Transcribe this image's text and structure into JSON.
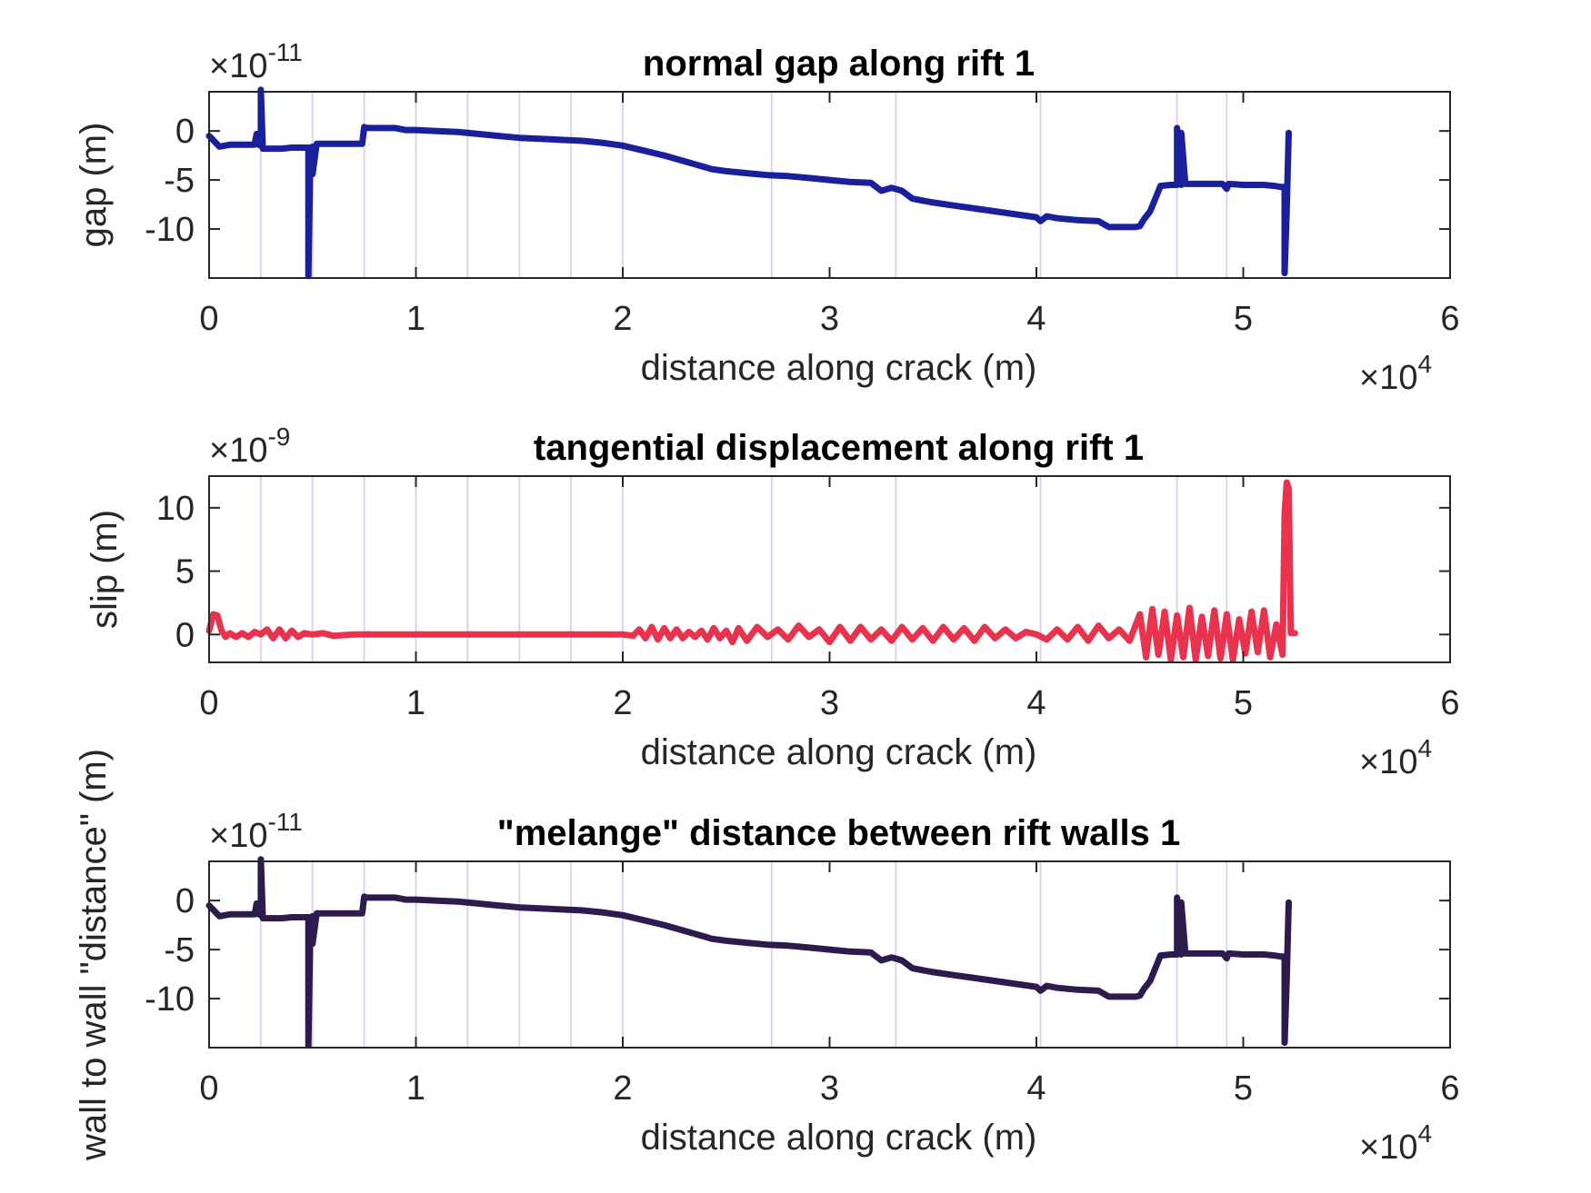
{
  "chart_data": [
    {
      "type": "line",
      "title": "normal gap along rift 1",
      "xlabel": "distance along crack (m)",
      "ylabel": "gap (m)",
      "x_multiplier": "×10",
      "x_exponent": "4",
      "y_multiplier": "×10",
      "y_exponent": "-11",
      "xlim": [
        0,
        6
      ],
      "ylim": [
        -15,
        4
      ],
      "xticks": [
        "0",
        "1",
        "2",
        "3",
        "4",
        "5",
        "6"
      ],
      "yticks": [
        {
          "value": 0,
          "label": "0"
        },
        {
          "value": -5,
          "label": "-5"
        },
        {
          "value": -10,
          "label": "-10"
        }
      ],
      "color": "#1a1f9c",
      "vlines": [
        0.25,
        0.5,
        0.75,
        1.0,
        1.25,
        1.5,
        1.75,
        2.0,
        2.72,
        3.32,
        4.02,
        4.68,
        4.92
      ],
      "series": [
        {
          "x": [
            0,
            0.05,
            0.1,
            0.15,
            0.2,
            0.22,
            0.23,
            0.24,
            0.25,
            0.25,
            0.26,
            0.3,
            0.35,
            0.4,
            0.45,
            0.48,
            0.48,
            0.49,
            0.5,
            0.5,
            0.52,
            0.53,
            0.53,
            0.56,
            0.6,
            0.65,
            0.7,
            0.74,
            0.75,
            0.76,
            0.8,
            0.9,
            0.95,
            1.0,
            1.1,
            1.2,
            1.3,
            1.4,
            1.5,
            1.6,
            1.7,
            1.8,
            1.9,
            2.0,
            2.1,
            2.2,
            2.3,
            2.4,
            2.43,
            2.5,
            2.6,
            2.7,
            2.8,
            2.9,
            3.0,
            3.1,
            3.2,
            3.25,
            3.3,
            3.35,
            3.4,
            3.45,
            3.5,
            3.6,
            3.7,
            3.8,
            3.9,
            4.0,
            4.02,
            4.05,
            4.1,
            4.2,
            4.3,
            4.35,
            4.4,
            4.45,
            4.48,
            4.5,
            4.52,
            4.55,
            4.6,
            4.65,
            4.68,
            4.68,
            4.7,
            4.7,
            4.72,
            4.8,
            4.9,
            4.92,
            4.93,
            5.0,
            5.1,
            5.15,
            5.18,
            5.2,
            5.2,
            5.21,
            5.22,
            5.22
          ],
          "y": [
            -0.5,
            -1.6,
            -1.4,
            -1.4,
            -1.4,
            -1.4,
            -0.3,
            -1.4,
            -1.5,
            4.2,
            -1.8,
            -1.8,
            -1.8,
            -1.7,
            -1.7,
            -1.7,
            -14.8,
            -1.7,
            -1.6,
            -4.4,
            -1.3,
            -1.3,
            -1.3,
            -1.3,
            -1.3,
            -1.3,
            -1.3,
            -1.3,
            0.4,
            0.3,
            0.3,
            0.3,
            0.1,
            0.1,
            0.0,
            -0.1,
            -0.3,
            -0.5,
            -0.7,
            -0.8,
            -0.9,
            -1.0,
            -1.2,
            -1.5,
            -2.0,
            -2.5,
            -3.1,
            -3.7,
            -3.9,
            -4.1,
            -4.3,
            -4.5,
            -4.6,
            -4.8,
            -5.0,
            -5.2,
            -5.3,
            -6.1,
            -5.8,
            -6.1,
            -6.9,
            -7.1,
            -7.3,
            -7.6,
            -7.9,
            -8.2,
            -8.5,
            -8.8,
            -9.2,
            -8.7,
            -8.9,
            -9.1,
            -9.2,
            -9.8,
            -9.8,
            -9.8,
            -9.8,
            -9.7,
            -9.0,
            -8.2,
            -5.6,
            -5.5,
            -5.5,
            0.3,
            -5.5,
            -0.2,
            -5.4,
            -5.4,
            -5.4,
            -5.9,
            -5.4,
            -5.5,
            -5.5,
            -5.6,
            -5.7,
            -5.7,
            -14.5,
            -8.0,
            -0.2,
            -0.2
          ]
        }
      ]
    },
    {
      "type": "line",
      "title": "tangential displacement along rift 1",
      "xlabel": "distance along crack (m)",
      "ylabel": "slip (m)",
      "x_multiplier": "×10",
      "x_exponent": "4",
      "y_multiplier": "×10",
      "y_exponent": "-9",
      "xlim": [
        0,
        6
      ],
      "ylim": [
        -2.2,
        12.5
      ],
      "xticks": [
        "0",
        "1",
        "2",
        "3",
        "4",
        "5",
        "6"
      ],
      "yticks": [
        {
          "value": 10,
          "label": "10"
        },
        {
          "value": 5,
          "label": "5"
        },
        {
          "value": 0,
          "label": "0"
        }
      ],
      "color": "#e8324e",
      "vlines": [
        0.25,
        0.5,
        0.75,
        1.0,
        1.25,
        1.5,
        1.75,
        2.0,
        2.72,
        3.32,
        4.02,
        4.68,
        4.92
      ],
      "series": [
        {
          "x": [
            0,
            0.02,
            0.04,
            0.06,
            0.08,
            0.1,
            0.13,
            0.16,
            0.19,
            0.22,
            0.25,
            0.28,
            0.31,
            0.34,
            0.37,
            0.4,
            0.43,
            0.46,
            0.5,
            0.55,
            0.6,
            0.7,
            0.8,
            1.0,
            1.2,
            1.5,
            1.8,
            2.0,
            2.05,
            2.08,
            2.11,
            2.14,
            2.17,
            2.2,
            2.23,
            2.26,
            2.29,
            2.32,
            2.35,
            2.38,
            2.41,
            2.44,
            2.47,
            2.5,
            2.53,
            2.56,
            2.6,
            2.65,
            2.7,
            2.75,
            2.8,
            2.85,
            2.9,
            2.95,
            3.0,
            3.05,
            3.1,
            3.15,
            3.2,
            3.25,
            3.3,
            3.35,
            3.4,
            3.45,
            3.5,
            3.55,
            3.6,
            3.65,
            3.7,
            3.75,
            3.8,
            3.85,
            3.9,
            3.95,
            4.0,
            4.05,
            4.1,
            4.15,
            4.2,
            4.25,
            4.3,
            4.35,
            4.4,
            4.45,
            4.5,
            4.53,
            4.56,
            4.59,
            4.62,
            4.65,
            4.68,
            4.71,
            4.74,
            4.77,
            4.8,
            4.83,
            4.86,
            4.89,
            4.92,
            4.95,
            4.98,
            5.01,
            5.04,
            5.07,
            5.1,
            5.13,
            5.16,
            5.19,
            5.2,
            5.21,
            5.22,
            5.23,
            5.24,
            5.25
          ],
          "y": [
            0.3,
            1.6,
            1.5,
            0.3,
            -0.2,
            0.1,
            -0.2,
            0.1,
            -0.2,
            0.2,
            0.0,
            0.4,
            -0.3,
            0.4,
            -0.3,
            0.3,
            -0.2,
            0.1,
            0.0,
            0.1,
            -0.1,
            0.0,
            0.0,
            0.0,
            0.0,
            0.0,
            0.0,
            0.0,
            -0.1,
            0.4,
            -0.3,
            0.6,
            -0.4,
            0.5,
            -0.3,
            0.4,
            -0.3,
            0.2,
            -0.2,
            0.3,
            -0.4,
            0.5,
            -0.3,
            0.3,
            -0.6,
            0.5,
            -0.5,
            0.6,
            -0.2,
            0.4,
            -0.4,
            0.7,
            -0.2,
            0.4,
            -0.6,
            0.6,
            -0.5,
            0.6,
            -0.4,
            0.4,
            -0.5,
            0.6,
            -0.4,
            0.5,
            -0.5,
            0.6,
            -0.4,
            0.5,
            -0.5,
            0.6,
            -0.3,
            0.4,
            -0.3,
            0.2,
            0.0,
            -0.4,
            0.4,
            -0.4,
            0.6,
            -0.5,
            0.7,
            -0.3,
            0.4,
            -0.5,
            1.6,
            -1.8,
            2.0,
            -1.6,
            1.8,
            -2.0,
            1.5,
            -1.8,
            2.1,
            -2.0,
            1.4,
            -1.7,
            1.9,
            -1.9,
            1.6,
            -2.0,
            1.2,
            -1.5,
            1.8,
            -1.4,
            1.9,
            -1.8,
            0.8,
            -1.6,
            9.5,
            12.0,
            11.5,
            0.1,
            0.1,
            0.1
          ]
        }
      ]
    },
    {
      "type": "line",
      "title": "\"melange\" distance between rift walls 1",
      "xlabel": "distance along crack (m)",
      "ylabel": "wall to wall \"distance\" (m)",
      "x_multiplier": "×10",
      "x_exponent": "4",
      "y_multiplier": "×10",
      "y_exponent": "-11",
      "xlim": [
        0,
        6
      ],
      "ylim": [
        -15,
        4
      ],
      "xticks": [
        "0",
        "1",
        "2",
        "3",
        "4",
        "5",
        "6"
      ],
      "yticks": [
        {
          "value": 0,
          "label": "0"
        },
        {
          "value": -5,
          "label": "-5"
        },
        {
          "value": -10,
          "label": "-10"
        }
      ],
      "color": "#2d1b4e",
      "vlines": [
        0.25,
        0.5,
        0.75,
        1.0,
        1.25,
        1.5,
        1.75,
        2.0,
        2.72,
        3.32,
        4.02,
        4.68,
        4.92
      ],
      "series": [
        {
          "x": [
            0,
            0.05,
            0.1,
            0.15,
            0.2,
            0.22,
            0.23,
            0.24,
            0.25,
            0.25,
            0.26,
            0.3,
            0.35,
            0.4,
            0.45,
            0.48,
            0.48,
            0.49,
            0.5,
            0.5,
            0.52,
            0.53,
            0.53,
            0.56,
            0.6,
            0.65,
            0.7,
            0.74,
            0.75,
            0.76,
            0.8,
            0.9,
            0.95,
            1.0,
            1.1,
            1.2,
            1.3,
            1.4,
            1.5,
            1.6,
            1.7,
            1.8,
            1.9,
            2.0,
            2.1,
            2.2,
            2.3,
            2.4,
            2.43,
            2.5,
            2.6,
            2.7,
            2.8,
            2.9,
            3.0,
            3.1,
            3.2,
            3.25,
            3.3,
            3.35,
            3.4,
            3.45,
            3.5,
            3.6,
            3.7,
            3.8,
            3.9,
            4.0,
            4.02,
            4.05,
            4.1,
            4.2,
            4.3,
            4.35,
            4.4,
            4.45,
            4.48,
            4.5,
            4.52,
            4.55,
            4.6,
            4.65,
            4.68,
            4.68,
            4.7,
            4.7,
            4.72,
            4.8,
            4.9,
            4.92,
            4.93,
            5.0,
            5.1,
            5.15,
            5.18,
            5.2,
            5.2,
            5.21,
            5.22,
            5.22
          ],
          "y": [
            -0.5,
            -1.6,
            -1.4,
            -1.4,
            -1.4,
            -1.4,
            -0.3,
            -1.4,
            -1.5,
            4.2,
            -1.8,
            -1.8,
            -1.8,
            -1.7,
            -1.7,
            -1.7,
            -14.8,
            -1.7,
            -1.6,
            -4.4,
            -1.3,
            -1.3,
            -1.3,
            -1.3,
            -1.3,
            -1.3,
            -1.3,
            -1.3,
            0.4,
            0.3,
            0.3,
            0.3,
            0.1,
            0.1,
            0.0,
            -0.1,
            -0.3,
            -0.5,
            -0.7,
            -0.8,
            -0.9,
            -1.0,
            -1.2,
            -1.5,
            -2.0,
            -2.5,
            -3.1,
            -3.7,
            -3.9,
            -4.1,
            -4.3,
            -4.5,
            -4.6,
            -4.8,
            -5.0,
            -5.2,
            -5.3,
            -6.1,
            -5.8,
            -6.1,
            -6.9,
            -7.1,
            -7.3,
            -7.6,
            -7.9,
            -8.2,
            -8.5,
            -8.8,
            -9.2,
            -8.7,
            -8.9,
            -9.1,
            -9.2,
            -9.8,
            -9.8,
            -9.8,
            -9.8,
            -9.7,
            -9.0,
            -8.2,
            -5.6,
            -5.5,
            -5.5,
            0.3,
            -5.5,
            -0.2,
            -5.4,
            -5.4,
            -5.4,
            -5.9,
            -5.4,
            -5.5,
            -5.5,
            -5.6,
            -5.7,
            -5.7,
            -14.5,
            -8.0,
            -0.2,
            -0.2
          ]
        }
      ]
    }
  ]
}
